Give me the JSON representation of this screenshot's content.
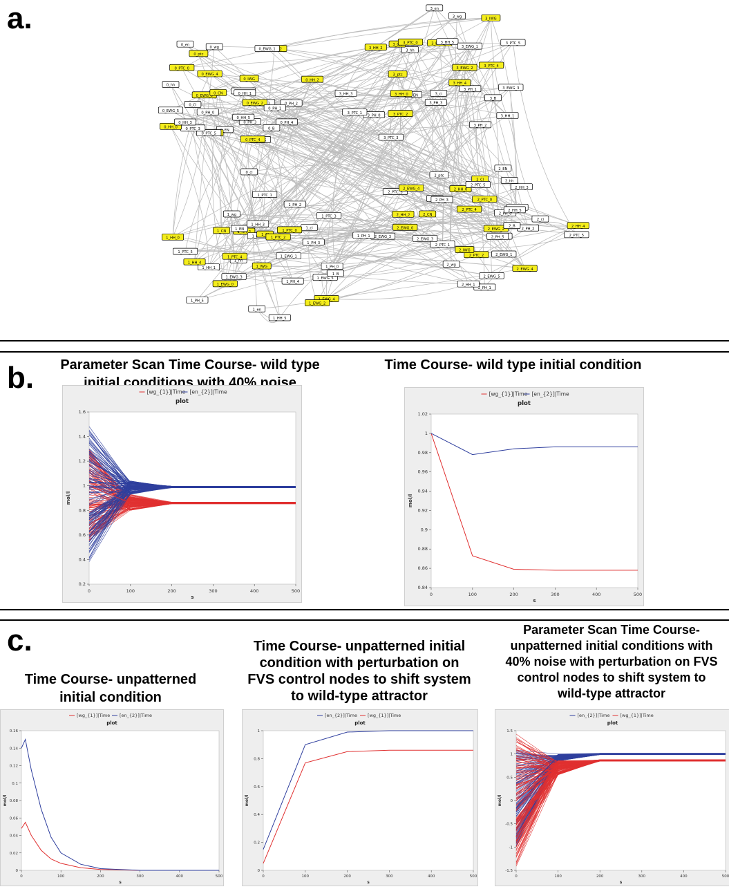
{
  "panels": {
    "a": "a.",
    "b": "b.",
    "c": "c."
  },
  "network": {
    "yellow_color": "#f5ee1c",
    "nodes": [
      {
        "label": "3_B",
        "yellow": false
      },
      {
        "label": "3_PH_1",
        "yellow": false
      },
      {
        "label": "0_PH_4",
        "yellow": false
      },
      {
        "label": "3_HH_1",
        "yellow": false
      },
      {
        "label": "0_B",
        "yellow": false
      },
      {
        "label": "3_PH_2",
        "yellow": false
      },
      {
        "label": "3_ci",
        "yellow": false
      },
      {
        "label": "3_PH_3",
        "yellow": false
      },
      {
        "label": "0_PH_3",
        "yellow": false
      },
      {
        "label": "0_PH_5",
        "yellow": false
      },
      {
        "label": "0_HH_5",
        "yellow": false
      },
      {
        "label": "3_PTC_3",
        "yellow": false
      },
      {
        "label": "0_PTC_4",
        "yellow": true
      },
      {
        "label": "3_EN",
        "yellow": false
      },
      {
        "label": "3_PTC_2",
        "yellow": true
      },
      {
        "label": "3_HH_0",
        "yellow": true
      },
      {
        "label": "0_ci",
        "yellow": false
      },
      {
        "label": "0_EN",
        "yellow": false
      },
      {
        "label": "0_HH_4",
        "yellow": true
      },
      {
        "label": "3_PH_0",
        "yellow": false
      },
      {
        "label": "0_PTC_5",
        "yellow": false
      },
      {
        "label": "3_PTC_1",
        "yellow": false
      },
      {
        "label": "3_HH_3",
        "yellow": false
      },
      {
        "label": "3_CI",
        "yellow": false
      },
      {
        "label": "0_PTC_3",
        "yellow": false
      },
      {
        "label": "0_HH_0",
        "yellow": true
      },
      {
        "label": "3_ptc",
        "yellow": true
      },
      {
        "label": "0_PH_0",
        "yellow": false
      },
      {
        "label": "0_HH_3",
        "yellow": false
      },
      {
        "label": "3_HH_2",
        "yellow": true
      },
      {
        "label": "3_hh",
        "yellow": false
      },
      {
        "label": "3_CN",
        "yellow": true
      },
      {
        "label": "0_EWG_5",
        "yellow": false
      },
      {
        "label": "3_PTC_0",
        "yellow": true
      },
      {
        "label": "0_CI",
        "yellow": false
      },
      {
        "label": "0_EWG_0",
        "yellow": true
      },
      {
        "label": "0_hh",
        "yellow": false
      },
      {
        "label": "3_en",
        "yellow": false
      },
      {
        "label": "3_wg",
        "yellow": false
      },
      {
        "label": "0_PTC_0",
        "yellow": true
      },
      {
        "label": "0_CN",
        "yellow": true
      },
      {
        "label": "3_EWG_0",
        "yellow": true
      },
      {
        "label": "3_HH_5",
        "yellow": false
      },
      {
        "label": "0_ptc",
        "yellow": true
      },
      {
        "label": "0_en",
        "yellow": false
      },
      {
        "label": "0_EWG_4",
        "yellow": true
      },
      {
        "label": "3_EWG_1",
        "yellow": false
      },
      {
        "label": "3_IWG",
        "yellow": true
      },
      {
        "label": "3_PTC_5",
        "yellow": false
      },
      {
        "label": "3_PTC_4",
        "yellow": true
      },
      {
        "label": "0_wg",
        "yellow": false
      },
      {
        "label": "0_IWG",
        "yellow": true
      },
      {
        "label": "3_EWG_2",
        "yellow": true
      },
      {
        "label": "3_EWG_3",
        "yellow": false
      },
      {
        "label": "0_PTC_2",
        "yellow": true
      },
      {
        "label": "0_EWG_1",
        "yellow": false
      },
      {
        "label": "0_EWG_3",
        "yellow": false
      },
      {
        "label": "0_HH_1",
        "yellow": false
      },
      {
        "label": "0_HH_2",
        "yellow": true
      },
      {
        "label": "0_PTC_1",
        "yellow": false
      },
      {
        "label": "0_EWG_2",
        "yellow": true
      },
      {
        "label": "0_PH_2",
        "yellow": false
      },
      {
        "label": "2_PH_2",
        "yellow": false
      },
      {
        "label": "0_PH_1",
        "yellow": false
      },
      {
        "label": "2_PH_4",
        "yellow": false
      },
      {
        "label": "2_EWG_2",
        "yellow": true
      },
      {
        "label": "3_HH_4",
        "yellow": true
      },
      {
        "label": "2_PH_5",
        "yellow": false
      },
      {
        "label": "2_EWG_1",
        "yellow": false
      },
      {
        "label": "2_EWG_4",
        "yellow": true
      },
      {
        "label": "2_EWG_5",
        "yellow": false
      },
      {
        "label": "2_PH_1",
        "yellow": false
      },
      {
        "label": "1_EWG_5",
        "yellow": false
      },
      {
        "label": "2_PTC_2",
        "yellow": true
      },
      {
        "label": "2_HH_1",
        "yellow": false
      },
      {
        "label": "1_EWG_1",
        "yellow": false
      },
      {
        "label": "2_IWG",
        "yellow": true
      },
      {
        "label": "2_wg",
        "yellow": false
      },
      {
        "label": "2_PTC_1",
        "yellow": false
      },
      {
        "label": "1_EWG_4",
        "yellow": true
      },
      {
        "label": "1_PH_4",
        "yellow": false
      },
      {
        "label": "1_EWG_2",
        "yellow": true
      },
      {
        "label": "2_EWG_3",
        "yellow": false
      },
      {
        "label": "2_EWG_0",
        "yellow": true
      },
      {
        "label": "2_EWG_3",
        "yellow": false
      },
      {
        "label": "2_CN",
        "yellow": true
      },
      {
        "label": "2_HH_2",
        "yellow": true
      },
      {
        "label": "2_PTC_3",
        "yellow": false
      },
      {
        "label": "1_HH_5",
        "yellow": false
      },
      {
        "label": "1_en",
        "yellow": false
      },
      {
        "label": "1_IWG",
        "yellow": true
      },
      {
        "label": "1_EWG_0",
        "yellow": true
      },
      {
        "label": "1_EWG_3",
        "yellow": false
      },
      {
        "label": "2_EWG_4",
        "yellow": true
      },
      {
        "label": "2_en",
        "yellow": false
      },
      {
        "label": "2_ptc",
        "yellow": false
      },
      {
        "label": "2_PH_3",
        "yellow": false
      },
      {
        "label": "1_PH_5",
        "yellow": false
      },
      {
        "label": "1_hh",
        "yellow": false
      },
      {
        "label": "1_PTC_4",
        "yellow": true
      },
      {
        "label": "1_HH_1",
        "yellow": false
      },
      {
        "label": "2_PTC_4",
        "yellow": true
      },
      {
        "label": "2_CI",
        "yellow": true
      },
      {
        "label": "2_HH_0",
        "yellow": true
      },
      {
        "label": "1_HH_4",
        "yellow": true
      },
      {
        "label": "1_PTC_5",
        "yellow": false
      },
      {
        "label": "1_HH_0",
        "yellow": true
      },
      {
        "label": "1_CN",
        "yellow": true
      },
      {
        "label": "1_HH_2",
        "yellow": true
      },
      {
        "label": "2_PTC_5",
        "yellow": false
      },
      {
        "label": "2_hh",
        "yellow": false
      },
      {
        "label": "2_PTC_0",
        "yellow": true
      },
      {
        "label": "1_EN",
        "yellow": false
      },
      {
        "label": "1_wg",
        "yellow": false
      },
      {
        "label": "1_ptc",
        "yellow": false
      },
      {
        "label": "2_EN",
        "yellow": false
      },
      {
        "label": "2_HH_3",
        "yellow": false
      },
      {
        "label": "2_PH_0",
        "yellow": false
      },
      {
        "label": "1_HH_3",
        "yellow": false
      },
      {
        "label": "1_CI",
        "yellow": true
      },
      {
        "label": "1_PTC_1",
        "yellow": false
      },
      {
        "label": "1_PTC_2",
        "yellow": true
      },
      {
        "label": "2_PH_4",
        "yellow": false
      },
      {
        "label": "2_HH_5",
        "yellow": false
      },
      {
        "label": "2_ci",
        "yellow": false
      },
      {
        "label": "1_PH_2",
        "yellow": false
      },
      {
        "label": "2_PTC_5",
        "yellow": false
      },
      {
        "label": "2_HH_4",
        "yellow": true
      },
      {
        "label": "1_ci",
        "yellow": false
      },
      {
        "label": "1_PTC_0",
        "yellow": true
      },
      {
        "label": "1_PTC_3",
        "yellow": false
      },
      {
        "label": "1_PH_1",
        "yellow": false
      },
      {
        "label": "1_PH_3",
        "yellow": false
      },
      {
        "label": "2_B",
        "yellow": false
      },
      {
        "label": "1_PH_0",
        "yellow": false
      },
      {
        "label": "1_B",
        "yellow": false
      }
    ]
  },
  "titles": {
    "b_left": [
      "Parameter Scan Time Course- wild type",
      "initial conditions with 40% noise"
    ],
    "b_right": [
      "Time Course- wild type initial condition"
    ],
    "c_left": [
      "Time Course- unpatterned",
      "initial condition"
    ],
    "c_mid": [
      "Time Course- unpatterned initial",
      "condition with perturbation on",
      "FVS control nodes to shift system",
      "to wild-type attractor"
    ],
    "c_right": [
      "Parameter Scan Time Course-",
      "unpatterned initial conditions with",
      "40% noise with perturbation on FVS",
      "control nodes  to shift system to",
      "wild-type attractor"
    ]
  },
  "chart_data": [
    {
      "id": "b_left",
      "type": "line",
      "title": "plot",
      "xlabel": "s",
      "ylabel": "mol/l",
      "xlim": [
        0,
        500
      ],
      "ylim": [
        0.2,
        1.6
      ],
      "xticks": [
        0,
        100,
        200,
        300,
        400,
        500
      ],
      "yticks": [
        0.2,
        0.4,
        0.6,
        0.8,
        1,
        1.2,
        1.4,
        1.6
      ],
      "legend": [
        "[wg_{1}]|Time",
        "[en_{2}]|Time"
      ],
      "legend_position": "top",
      "colors": {
        "wg": "#e03030",
        "en": "#2f3f9e"
      },
      "parameter_scan": true,
      "ensemble": {
        "wg": {
          "x": [
            0,
            100,
            200,
            500
          ],
          "start_range": [
            0.55,
            1.3
          ],
          "mid_range": [
            0.8,
            0.93
          ],
          "settle": [
            0.86,
            0.86
          ]
        },
        "en": {
          "x": [
            0,
            100,
            200,
            500
          ],
          "start_range": [
            0.38,
            1.49
          ],
          "mid_range": [
            0.93,
            1.04
          ],
          "settle": [
            0.99,
            0.99
          ]
        }
      },
      "series": [
        {
          "name": "[wg_{1}]|Time",
          "x": [
            0,
            100,
            200,
            500
          ],
          "values": [
            1.0,
            0.86,
            0.86,
            0.86
          ]
        },
        {
          "name": "[en_{2}]|Time",
          "x": [
            0,
            100,
            200,
            500
          ],
          "values": [
            1.0,
            0.98,
            0.99,
            0.99
          ]
        }
      ]
    },
    {
      "id": "b_right",
      "type": "line",
      "title": "plot",
      "xlabel": "s",
      "ylabel": "mol/l",
      "xlim": [
        0,
        500
      ],
      "ylim": [
        0.84,
        1.02
      ],
      "xticks": [
        0,
        100,
        200,
        300,
        400,
        500
      ],
      "yticks": [
        0.84,
        0.86,
        0.88,
        0.9,
        0.92,
        0.94,
        0.96,
        0.98,
        1,
        1.02
      ],
      "legend": [
        "[wg_{1}]|Time",
        "[en_{2}]|Time"
      ],
      "legend_position": "top",
      "colors": {
        "wg": "#e03030",
        "en": "#2f3f9e"
      },
      "series": [
        {
          "name": "[wg_{1}]|Time",
          "x": [
            0,
            100,
            200,
            300,
            500
          ],
          "values": [
            1.0,
            0.873,
            0.859,
            0.858,
            0.858
          ]
        },
        {
          "name": "[en_{2}]|Time",
          "x": [
            0,
            100,
            200,
            300,
            500
          ],
          "values": [
            1.0,
            0.978,
            0.984,
            0.986,
            0.986
          ]
        }
      ]
    },
    {
      "id": "c_left",
      "type": "line",
      "title": "plot",
      "xlabel": "s",
      "ylabel": "mol/l",
      "xlim": [
        0,
        500
      ],
      "ylim": [
        0,
        0.16
      ],
      "xticks": [
        0,
        100,
        200,
        300,
        400,
        500
      ],
      "yticks": [
        0,
        0.02,
        0.04,
        0.06,
        0.08,
        0.1,
        0.12,
        0.14,
        0.16
      ],
      "legend": [
        "[wg_{1}]|Time",
        "[en_{2}]|Time"
      ],
      "legend_position": "top",
      "colors": {
        "wg": "#e03030",
        "en": "#2f3f9e"
      },
      "series": [
        {
          "name": "[wg_{1}]|Time",
          "x": [
            0,
            10,
            25,
            50,
            75,
            100,
            150,
            200,
            300
          ],
          "values": [
            0.048,
            0.055,
            0.04,
            0.023,
            0.013,
            0.008,
            0.003,
            0.001,
            0
          ]
        },
        {
          "name": "[en_{2}]|Time",
          "x": [
            0,
            10,
            25,
            50,
            75,
            100,
            150,
            200,
            300,
            500
          ],
          "values": [
            0.14,
            0.15,
            0.115,
            0.07,
            0.038,
            0.02,
            0.007,
            0.002,
            0,
            0
          ]
        }
      ]
    },
    {
      "id": "c_mid",
      "type": "line",
      "title": "plot",
      "xlabel": "s",
      "ylabel": "mol/l",
      "xlim": [
        0,
        500
      ],
      "ylim": [
        0,
        1
      ],
      "xticks": [
        0,
        100,
        200,
        300,
        400,
        500
      ],
      "yticks": [
        0,
        0.2,
        0.4,
        0.6,
        0.8,
        1
      ],
      "legend": [
        "[en_{2}]|Time",
        "[wg_{1}]|Time"
      ],
      "legend_position": "top",
      "colors": {
        "wg": "#e03030",
        "en": "#2f3f9e"
      },
      "series": [
        {
          "name": "[en_{2}]|Time",
          "x": [
            0,
            100,
            200,
            300,
            500
          ],
          "values": [
            0.15,
            0.9,
            0.99,
            1.0,
            1.0
          ]
        },
        {
          "name": "[wg_{1}]|Time",
          "x": [
            0,
            100,
            200,
            300,
            500
          ],
          "values": [
            0.05,
            0.77,
            0.85,
            0.86,
            0.86
          ]
        }
      ]
    },
    {
      "id": "c_right",
      "type": "line",
      "title": "plot",
      "xlabel": "s",
      "ylabel": "mol/l",
      "xlim": [
        0,
        500
      ],
      "ylim": [
        -1.5,
        1.5
      ],
      "xticks": [
        0,
        100,
        200,
        300,
        400,
        500
      ],
      "yticks": [
        -1.5,
        -1,
        -0.5,
        0,
        0.5,
        1,
        1.5
      ],
      "legend": [
        "[en_{2}]|Time",
        "[wg_{1}]|Time"
      ],
      "legend_position": "top",
      "colors": {
        "wg": "#e03030",
        "en": "#2f3f9e"
      },
      "parameter_scan": true,
      "ensemble": {
        "wg": {
          "x": [
            0,
            100,
            200,
            500
          ],
          "start_range": [
            -1.42,
            1.45
          ],
          "mid_range": [
            0.55,
            0.86
          ],
          "settle": [
            0.86,
            0.86
          ]
        },
        "en": {
          "x": [
            0,
            100,
            200,
            500
          ],
          "start_range": [
            -1.0,
            1.1
          ],
          "mid_range": [
            0.85,
            1.0
          ],
          "settle": [
            1.0,
            1.0
          ]
        }
      },
      "series": [
        {
          "name": "[en_{2}]|Time",
          "x": [
            0,
            100,
            200,
            500
          ],
          "values": [
            0.0,
            0.95,
            1.0,
            1.0
          ]
        },
        {
          "name": "[wg_{1}]|Time",
          "x": [
            0,
            100,
            200,
            500
          ],
          "values": [
            0.0,
            0.78,
            0.86,
            0.86
          ]
        }
      ]
    }
  ]
}
